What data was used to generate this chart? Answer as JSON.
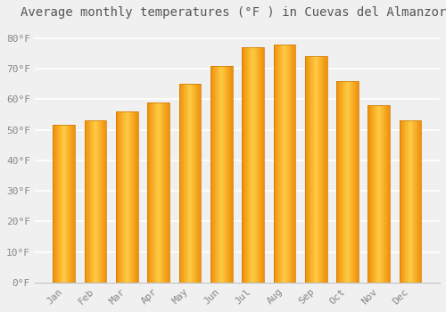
{
  "title": "Average monthly temperatures (°F ) in Cuevas del Almanzora",
  "months": [
    "Jan",
    "Feb",
    "Mar",
    "Apr",
    "May",
    "Jun",
    "Jul",
    "Aug",
    "Sep",
    "Oct",
    "Nov",
    "Dec"
  ],
  "values": [
    51.5,
    53,
    56,
    59,
    65,
    71,
    77,
    78,
    74,
    66,
    58,
    53
  ],
  "bar_color_center": "#FFCC44",
  "bar_color_edge": "#F0900A",
  "background_color": "#F0F0F0",
  "grid_color": "#FFFFFF",
  "text_color": "#888888",
  "title_color": "#555555",
  "yticks": [
    0,
    10,
    20,
    30,
    40,
    50,
    60,
    70,
    80
  ],
  "ylim": [
    0,
    84
  ],
  "title_fontsize": 10,
  "tick_fontsize": 8
}
